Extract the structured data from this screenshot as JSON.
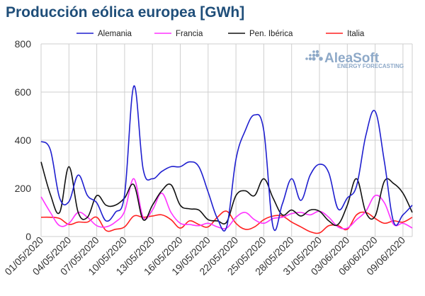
{
  "title": "Producción eólica europea [GWh]",
  "logo": {
    "name": "AleaSoft",
    "tagline": "ENERGY FORECASTING",
    "icon": "dot-grid-icon"
  },
  "chart_data": {
    "type": "line",
    "ylim": [
      0,
      800
    ],
    "yticks": [
      0,
      200,
      400,
      600,
      800
    ],
    "grid": true,
    "legend_position": "top",
    "x": [
      "01/05/2020",
      "02/05/2020",
      "03/05/2020",
      "04/05/2020",
      "05/05/2020",
      "06/05/2020",
      "07/05/2020",
      "08/05/2020",
      "09/05/2020",
      "10/05/2020",
      "11/05/2020",
      "12/05/2020",
      "13/05/2020",
      "14/05/2020",
      "15/05/2020",
      "16/05/2020",
      "17/05/2020",
      "18/05/2020",
      "19/05/2020",
      "20/05/2020",
      "21/05/2020",
      "22/05/2020",
      "23/05/2020",
      "24/05/2020",
      "25/05/2020",
      "26/05/2020",
      "27/05/2020",
      "28/05/2020",
      "29/05/2020",
      "30/05/2020",
      "31/05/2020",
      "01/06/2020",
      "02/06/2020",
      "03/06/2020",
      "04/06/2020",
      "05/06/2020",
      "06/06/2020",
      "07/06/2020",
      "08/06/2020",
      "09/06/2020",
      "10/06/2020"
    ],
    "xtick_labels": [
      "01/05/2020",
      "04/05/2020",
      "07/05/2020",
      "10/05/2020",
      "13/05/2020",
      "16/05/2020",
      "19/05/2020",
      "22/05/2020",
      "25/05/2020",
      "28/05/2020",
      "31/05/2020",
      "03/06/2020",
      "06/06/2020",
      "09/06/2020"
    ],
    "series": [
      {
        "name": "Alemania",
        "color": "#1f1fcf",
        "values": [
          395,
          360,
          160,
          145,
          255,
          170,
          140,
          65,
          100,
          175,
          625,
          280,
          240,
          270,
          290,
          290,
          310,
          290,
          185,
          75,
          40,
          320,
          440,
          505,
          440,
          40,
          135,
          240,
          150,
          255,
          300,
          265,
          115,
          160,
          210,
          420,
          520,
          310,
          60,
          90,
          130
        ]
      },
      {
        "name": "Francia",
        "color": "#ff33ff",
        "values": [
          165,
          100,
          45,
          55,
          100,
          80,
          45,
          40,
          60,
          105,
          240,
          80,
          110,
          180,
          100,
          55,
          50,
          45,
          55,
          40,
          35,
          80,
          100,
          70,
          55,
          75,
          80,
          95,
          100,
          90,
          105,
          80,
          40,
          35,
          70,
          105,
          170,
          140,
          50,
          55,
          35
        ]
      },
      {
        "name": "Pen. Ibérica",
        "color": "#111111",
        "values": [
          310,
          175,
          100,
          290,
          100,
          80,
          170,
          130,
          130,
          160,
          215,
          70,
          130,
          190,
          215,
          130,
          115,
          110,
          70,
          65,
          60,
          170,
          190,
          170,
          240,
          160,
          90,
          110,
          85,
          110,
          105,
          65,
          50,
          130,
          240,
          100,
          85,
          230,
          220,
          180,
          100
        ]
      },
      {
        "name": "Italia",
        "color": "#ff2020",
        "values": [
          80,
          80,
          75,
          50,
          60,
          60,
          80,
          25,
          30,
          40,
          85,
          80,
          85,
          90,
          70,
          35,
          65,
          50,
          40,
          80,
          105,
          55,
          30,
          40,
          70,
          85,
          85,
          60,
          40,
          20,
          15,
          45,
          45,
          30,
          90,
          100,
          75,
          55,
          65,
          60,
          80
        ]
      }
    ]
  }
}
